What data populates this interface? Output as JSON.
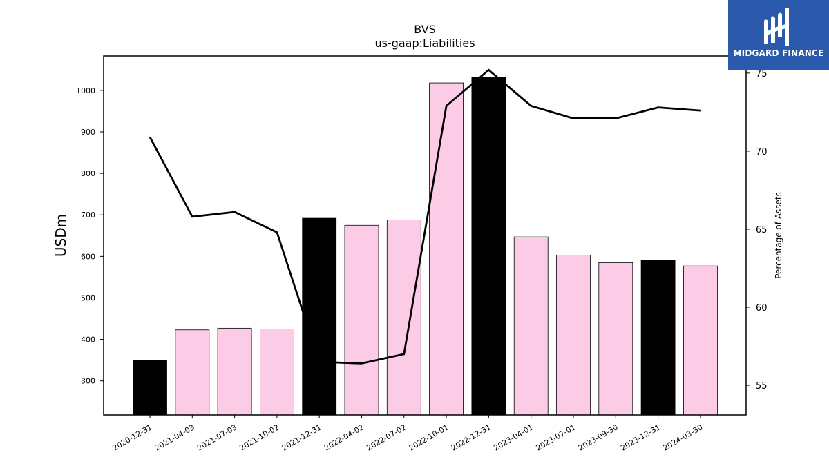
{
  "logo": {
    "text": "MIDGARD FINANCE",
    "icon": "midgard-m-logo-icon",
    "color": "#2b5aac"
  },
  "chart_data": {
    "type": "bar",
    "title": "BVS",
    "subtitle": "us-gaap:Liabilities",
    "ylabel": "USDm",
    "y2label": "Percentage of Assets",
    "categories": [
      "2020-12-31",
      "2021-04-03",
      "2021-07-03",
      "2021-10-02",
      "2021-12-31",
      "2022-04-02",
      "2022-07-02",
      "2022-10-01",
      "2022-12-31",
      "2023-04-01",
      "2023-07-01",
      "2023-09-30",
      "2023-12-31",
      "2024-03-30"
    ],
    "series": [
      {
        "type": "bar",
        "values": [
          350,
          423,
          427,
          425,
          692,
          675,
          688,
          1018,
          1032,
          647,
          603,
          585,
          590,
          577
        ]
      },
      {
        "type": "line",
        "axis": "right",
        "values": [
          70.9,
          65.8,
          66.1,
          64.8,
          56.5,
          56.4,
          57.0,
          72.9,
          75.2,
          72.9,
          72.1,
          72.1,
          72.8,
          72.6
        ]
      }
    ],
    "highlight_indices": [
      0,
      4,
      8,
      12
    ],
    "colors": {
      "bar": "#fccbe5",
      "bar_highlight": "#000000",
      "line": "#000000"
    },
    "ylim": [
      218,
      1083
    ],
    "y2lim": [
      53.1,
      76.1
    ],
    "yticks": [
      300,
      400,
      500,
      600,
      700,
      800,
      900,
      1000
    ],
    "y2ticks": [
      55,
      60,
      65,
      70,
      75
    ],
    "grid": false
  }
}
